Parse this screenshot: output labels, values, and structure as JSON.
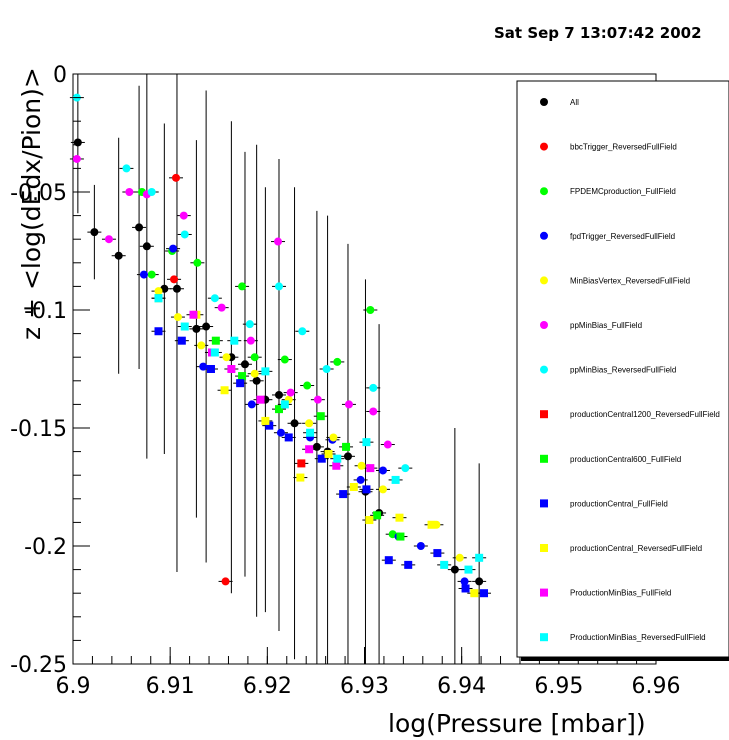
{
  "header": {
    "timestamp": "Sat Sep  7 13:07:42 2002"
  },
  "chart_data": {
    "type": "scatter",
    "title": "",
    "xlabel": "log(Pressure [mbar])",
    "ylabel": "z + <log(dEdx/Pion)>",
    "xlim": [
      6.9,
      6.96
    ],
    "ylim": [
      -0.25,
      0
    ],
    "x_ticks": [
      "6.9",
      "6.91",
      "6.92",
      "6.93",
      "6.94",
      "6.95",
      "6.96"
    ],
    "y_ticks": [
      "0",
      "-0.05",
      "-0.1",
      "-0.15",
      "-0.2",
      "-0.25"
    ],
    "grid": false,
    "legend_position": "right",
    "series": [
      {
        "name": "All",
        "color": "#000000",
        "marker": "circle",
        "points": [
          [
            6.9005,
            -0.029,
            0.03
          ],
          [
            6.9022,
            -0.067,
            0.02
          ],
          [
            6.9047,
            -0.077,
            0.05
          ],
          [
            6.9068,
            -0.065,
            0.06
          ],
          [
            6.9076,
            -0.073,
            0.09
          ],
          [
            6.9094,
            -0.091,
            0.07
          ],
          [
            6.9107,
            -0.091,
            0.12
          ],
          [
            6.9127,
            -0.108,
            0.08
          ],
          [
            6.9137,
            -0.107,
            0.1
          ],
          [
            6.9163,
            -0.12,
            0.1
          ],
          [
            6.9177,
            -0.123,
            0.09
          ],
          [
            6.9189,
            -0.13,
            0.1
          ],
          [
            6.9198,
            -0.138,
            0.09
          ],
          [
            6.9212,
            -0.136,
            0.1
          ],
          [
            6.9228,
            -0.148,
            0.1
          ],
          [
            6.9251,
            -0.158,
            0.1
          ],
          [
            6.9262,
            -0.16,
            0.1
          ],
          [
            6.9283,
            -0.162,
            0.09
          ],
          [
            6.9301,
            -0.177,
            0.09
          ],
          [
            6.9315,
            -0.186,
            0.08
          ],
          [
            6.9393,
            -0.21,
            0.06
          ],
          [
            6.9418,
            -0.215,
            0.05
          ]
        ]
      },
      {
        "name": "bbcTrigger_ReversedFullField",
        "color": "#ff0000",
        "marker": "circle",
        "points": [
          [
            6.9106,
            -0.044
          ],
          [
            6.9104,
            -0.087
          ],
          [
            6.9157,
            -0.215
          ]
        ]
      },
      {
        "name": "FPDEMCproduction_FullField",
        "color": "#00ff00",
        "marker": "circle",
        "points": [
          [
            6.9071,
            -0.05
          ],
          [
            6.9081,
            -0.085
          ],
          [
            6.9102,
            -0.075
          ],
          [
            6.9128,
            -0.08
          ],
          [
            6.9174,
            -0.09
          ],
          [
            6.9187,
            -0.12
          ],
          [
            6.9218,
            -0.121
          ],
          [
            6.9241,
            -0.132
          ],
          [
            6.9272,
            -0.122
          ],
          [
            6.9306,
            -0.1
          ],
          [
            6.9329,
            -0.195
          ]
        ]
      },
      {
        "name": "fpdTrigger_ReversedFullField",
        "color": "#0000ff",
        "marker": "circle",
        "points": [
          [
            6.9073,
            -0.085
          ],
          [
            6.9103,
            -0.074
          ],
          [
            6.9134,
            -0.124
          ],
          [
            6.9184,
            -0.14
          ],
          [
            6.9214,
            -0.152
          ],
          [
            6.9244,
            -0.154
          ],
          [
            6.9267,
            -0.155
          ],
          [
            6.9296,
            -0.172
          ],
          [
            6.9319,
            -0.168
          ],
          [
            6.9335,
            -0.196
          ],
          [
            6.9358,
            -0.2
          ],
          [
            6.9403,
            -0.215
          ]
        ]
      },
      {
        "name": "MinBiasVertex_ReversedFullField",
        "color": "#ffff00",
        "marker": "circle",
        "points": [
          [
            6.9088,
            -0.092
          ],
          [
            6.9108,
            -0.103
          ],
          [
            6.9132,
            -0.115
          ],
          [
            6.9158,
            -0.12
          ],
          [
            6.9187,
            -0.127
          ],
          [
            6.9222,
            -0.138
          ],
          [
            6.9243,
            -0.148
          ],
          [
            6.9268,
            -0.154
          ],
          [
            6.9297,
            -0.166
          ],
          [
            6.9319,
            -0.176
          ],
          [
            6.9374,
            -0.191
          ],
          [
            6.9398,
            -0.205
          ]
        ]
      },
      {
        "name": "ppMinBias_FullField",
        "color": "#ff00ff",
        "marker": "circle",
        "points": [
          [
            6.9004,
            -0.036
          ],
          [
            6.9037,
            -0.07
          ],
          [
            6.9058,
            -0.05
          ],
          [
            6.9076,
            -0.051
          ],
          [
            6.9114,
            -0.06
          ],
          [
            6.9153,
            -0.099
          ],
          [
            6.9183,
            -0.113
          ],
          [
            6.9211,
            -0.071
          ],
          [
            6.9224,
            -0.135
          ],
          [
            6.9252,
            -0.138
          ],
          [
            6.9284,
            -0.14
          ],
          [
            6.9309,
            -0.143
          ],
          [
            6.9324,
            -0.157
          ]
        ]
      },
      {
        "name": "ppMinBias_ReversedFullField",
        "color": "#00ffff",
        "marker": "circle",
        "points": [
          [
            6.9004,
            -0.01
          ],
          [
            6.9055,
            -0.04
          ],
          [
            6.9081,
            -0.05
          ],
          [
            6.9115,
            -0.068
          ],
          [
            6.9146,
            -0.095
          ],
          [
            6.9182,
            -0.106
          ],
          [
            6.9212,
            -0.09
          ],
          [
            6.9236,
            -0.109
          ],
          [
            6.9261,
            -0.125
          ],
          [
            6.9309,
            -0.133
          ],
          [
            6.9342,
            -0.167
          ]
        ]
      },
      {
        "name": "productionCentral1200_ReversedFullField",
        "color": "#ff0000",
        "marker": "square",
        "points": [
          [
            6.9235,
            -0.165
          ]
        ]
      },
      {
        "name": "productionCentral600_FullField",
        "color": "#00ff00",
        "marker": "square",
        "points": [
          [
            6.9088,
            -0.095
          ],
          [
            6.9147,
            -0.113
          ],
          [
            6.9174,
            -0.128
          ],
          [
            6.9212,
            -0.142
          ],
          [
            6.9255,
            -0.145
          ],
          [
            6.9281,
            -0.158
          ],
          [
            6.9313,
            -0.187
          ],
          [
            6.9337,
            -0.196
          ]
        ]
      },
      {
        "name": "productionCentral_FullField",
        "color": "#0000ff",
        "marker": "square",
        "points": [
          [
            6.9088,
            -0.109
          ],
          [
            6.9112,
            -0.113
          ],
          [
            6.9142,
            -0.125
          ],
          [
            6.9172,
            -0.131
          ],
          [
            6.9202,
            -0.149
          ],
          [
            6.9222,
            -0.154
          ],
          [
            6.9256,
            -0.163
          ],
          [
            6.9278,
            -0.178
          ],
          [
            6.9302,
            -0.176
          ],
          [
            6.9325,
            -0.206
          ],
          [
            6.9345,
            -0.208
          ],
          [
            6.9375,
            -0.203
          ],
          [
            6.9404,
            -0.218
          ],
          [
            6.9423,
            -0.22
          ]
        ]
      },
      {
        "name": "productionCentral_ReversedFullField",
        "color": "#ffff00",
        "marker": "square",
        "points": [
          [
            6.9127,
            -0.102
          ],
          [
            6.9156,
            -0.134
          ],
          [
            6.9198,
            -0.147
          ],
          [
            6.9234,
            -0.171
          ],
          [
            6.9263,
            -0.161
          ],
          [
            6.9289,
            -0.175
          ],
          [
            6.9305,
            -0.189
          ],
          [
            6.9336,
            -0.188
          ],
          [
            6.9369,
            -0.191
          ],
          [
            6.9413,
            -0.22
          ]
        ]
      },
      {
        "name": "ProductionMinBias_FullField",
        "color": "#ff00ff",
        "marker": "square",
        "points": [
          [
            6.9124,
            -0.102
          ],
          [
            6.9143,
            -0.118
          ],
          [
            6.9163,
            -0.125
          ],
          [
            6.9193,
            -0.138
          ],
          [
            6.9243,
            -0.159
          ],
          [
            6.9271,
            -0.166
          ],
          [
            6.9306,
            -0.167
          ]
        ]
      },
      {
        "name": "ProductionMinBias_ReversedFullField",
        "color": "#00ffff",
        "marker": "square",
        "points": [
          [
            6.9088,
            -0.095
          ],
          [
            6.9115,
            -0.107
          ],
          [
            6.9146,
            -0.118
          ],
          [
            6.9166,
            -0.113
          ],
          [
            6.9198,
            -0.126
          ],
          [
            6.9218,
            -0.14
          ],
          [
            6.9244,
            -0.152
          ],
          [
            6.9272,
            -0.163
          ],
          [
            6.9302,
            -0.156
          ],
          [
            6.9332,
            -0.172
          ],
          [
            6.9382,
            -0.208
          ],
          [
            6.9407,
            -0.21
          ],
          [
            6.9418,
            -0.205
          ]
        ]
      }
    ]
  }
}
